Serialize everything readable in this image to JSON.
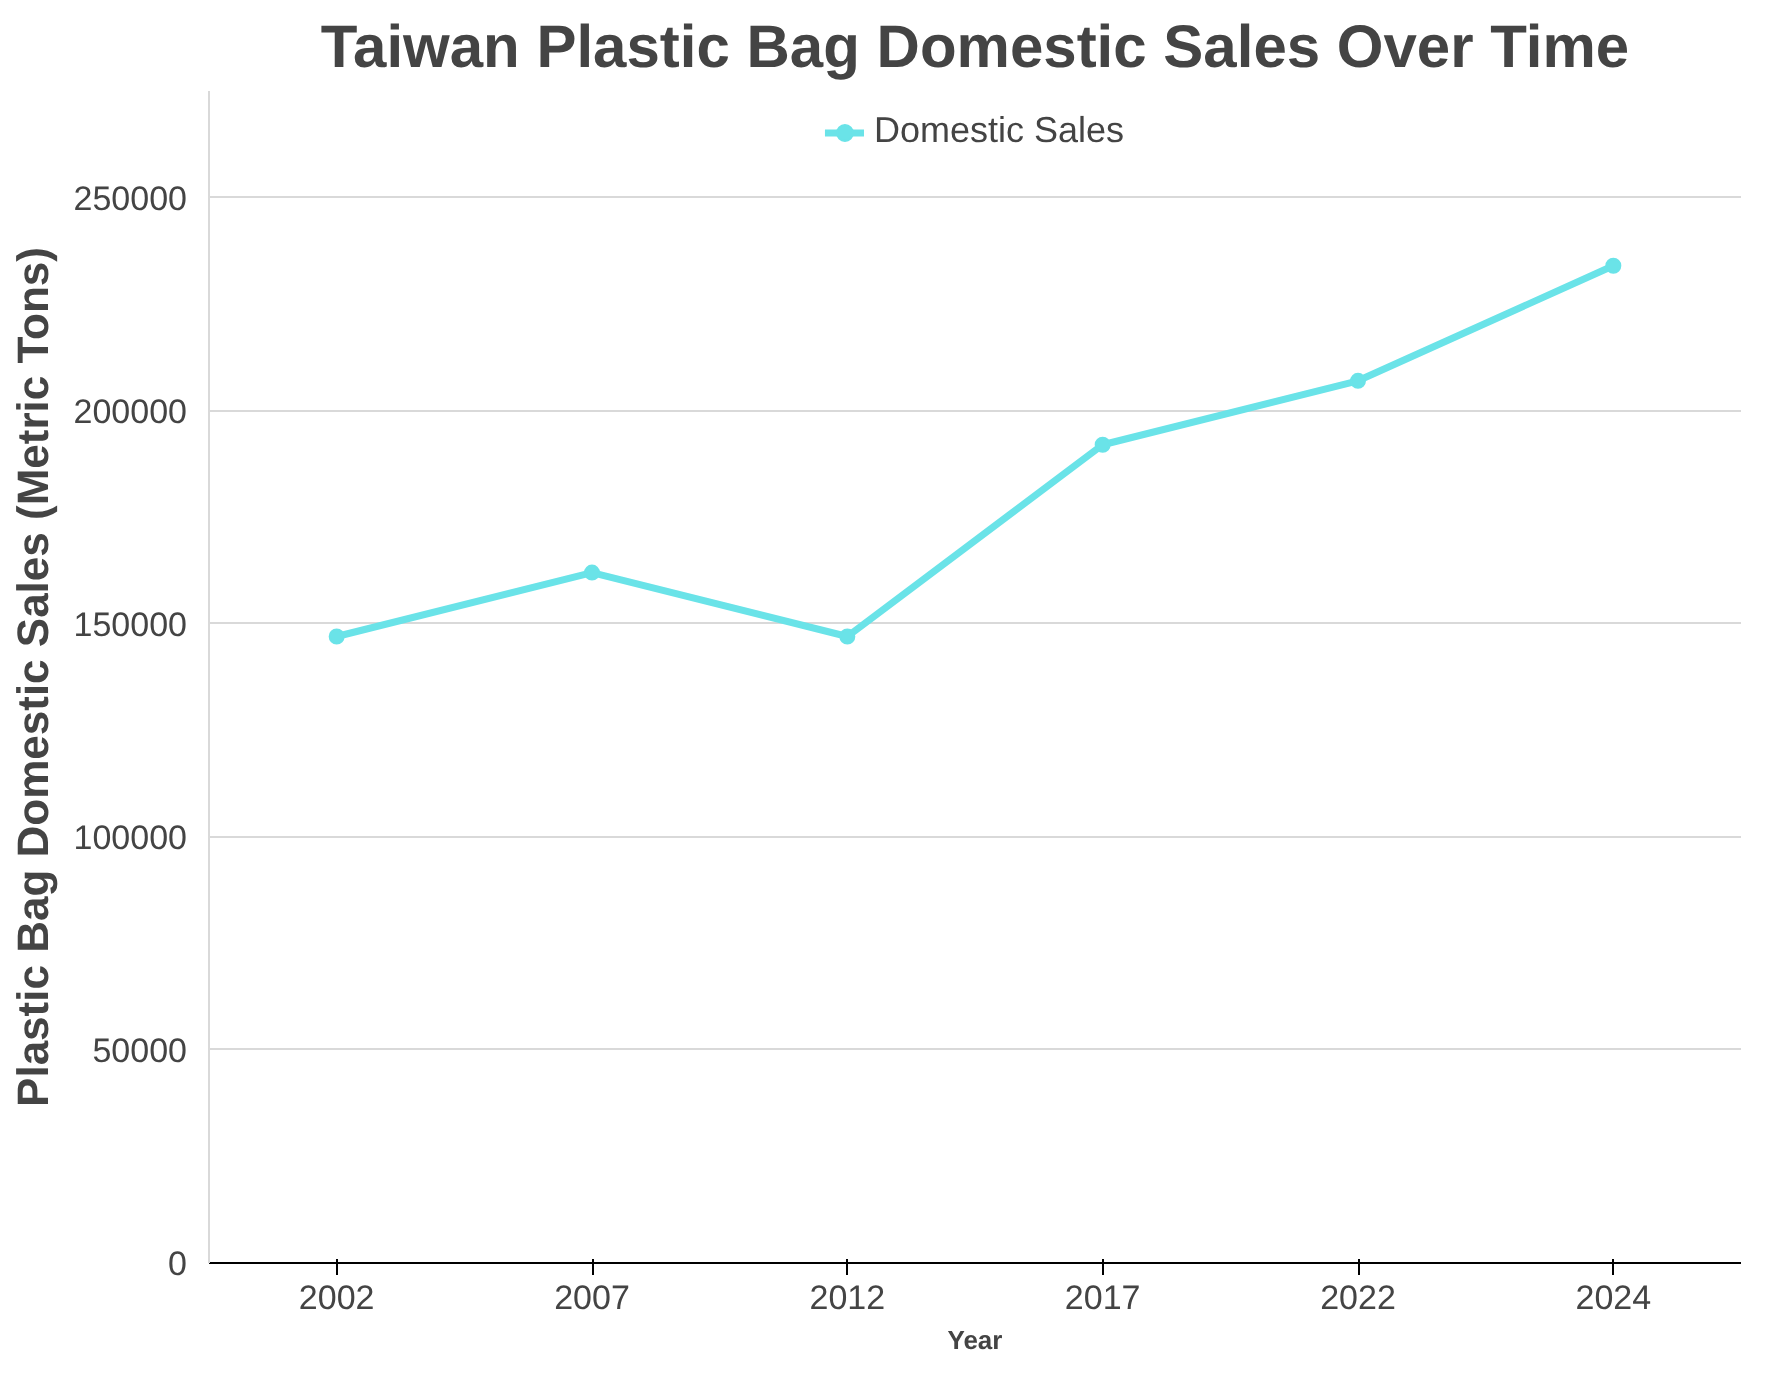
{
  "chart_data": {
    "type": "line",
    "title": "Taiwan Plastic Bag Domestic Sales Over Time",
    "xlabel": "Year",
    "ylabel": "Plastic Bag Domestic Sales (Metric Tons)",
    "categories": [
      "2002",
      "2007",
      "2012",
      "2017",
      "2022",
      "2024"
    ],
    "series": [
      {
        "name": "Domestic Sales",
        "color": "#6ae3e8",
        "values": [
          147000,
          162000,
          147000,
          192000,
          207000,
          234000
        ]
      }
    ],
    "ylim": [
      0,
      275000
    ],
    "yticks": [
      0,
      50000,
      100000,
      150000,
      200000,
      250000
    ],
    "grid": "y",
    "legend": "top",
    "marker": "circle",
    "line_style": "solid"
  }
}
